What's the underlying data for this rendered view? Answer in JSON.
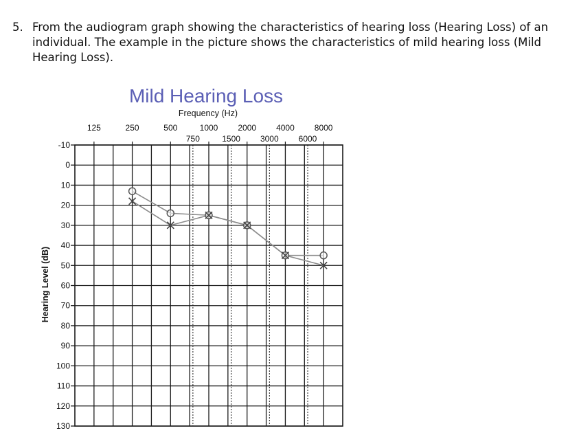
{
  "question": {
    "number": "5.",
    "text": "From the audiogram graph showing the characteristics of hearing loss (Hearing Loss) of an individual. The example in the picture shows the characteristics of mild hearing loss (Mild Hearing Loss)."
  },
  "chart_data": {
    "type": "line",
    "title": "Mild Hearing Loss",
    "xlabel": "Frequency (Hz)",
    "ylabel": "Hearing Level (dB)",
    "x_octave_labels": [
      "125",
      "250",
      "500",
      "1000",
      "2000",
      "4000",
      "8000"
    ],
    "x_interoctave_labels": [
      "750",
      "1500",
      "3000",
      "6000"
    ],
    "y_ticks": [
      -10,
      0,
      10,
      20,
      30,
      40,
      50,
      60,
      70,
      80,
      90,
      100,
      110,
      120,
      130
    ],
    "ylim": [
      -10,
      130
    ],
    "y_inverted": true,
    "grid": true,
    "series": [
      {
        "marker": "circle",
        "color": "#8c8c8c",
        "points": [
          {
            "x": 250,
            "y": 13
          },
          {
            "x": 500,
            "y": 24
          },
          {
            "x": 1000,
            "y": 25
          },
          {
            "x": 2000,
            "y": 30
          },
          {
            "x": 4000,
            "y": 45
          },
          {
            "x": 8000,
            "y": 45
          }
        ]
      },
      {
        "marker": "cross",
        "color": "#8c8c8c",
        "points": [
          {
            "x": 250,
            "y": 18
          },
          {
            "x": 500,
            "y": 30
          },
          {
            "x": 1000,
            "y": 25
          },
          {
            "x": 2000,
            "y": 30
          },
          {
            "x": 4000,
            "y": 45
          },
          {
            "x": 8000,
            "y": 50
          }
        ]
      }
    ],
    "colors": {
      "title": "#5b5fb5",
      "grid": "#1a1a1a",
      "line": "#8c8c8c"
    }
  }
}
